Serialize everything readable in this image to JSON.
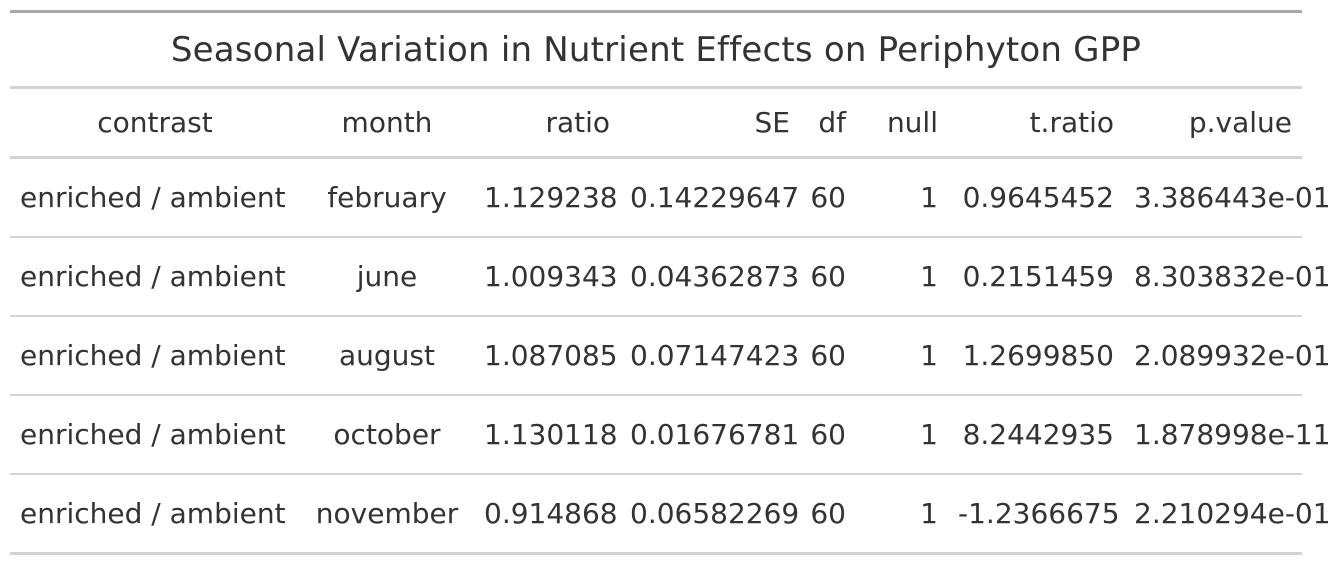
{
  "table": {
    "title": "Seasonal Variation in Nutrient Effects on Periphyton GPP",
    "columns": [
      "contrast",
      "month",
      "ratio",
      "SE",
      "df",
      "null",
      "t.ratio",
      "p.value"
    ],
    "rows": [
      [
        "enriched / ambient",
        "february",
        "1.129238",
        "0.14229647",
        "60",
        "1",
        "0.9645452",
        "3.386443e-01"
      ],
      [
        "enriched / ambient",
        "june",
        "1.009343",
        "0.04362873",
        "60",
        "1",
        "0.2151459",
        "8.303832e-01"
      ],
      [
        "enriched / ambient",
        "august",
        "1.087085",
        "0.07147423",
        "60",
        "1",
        "1.2699850",
        "2.089932e-01"
      ],
      [
        "enriched / ambient",
        "october",
        "1.130118",
        "0.01676781",
        "60",
        "1",
        "8.2442935",
        "1.878998e-11"
      ],
      [
        "enriched / ambient",
        "november",
        "0.914868",
        "0.06582269",
        "60",
        "1",
        "-1.2366675",
        "2.210294e-01"
      ]
    ]
  }
}
